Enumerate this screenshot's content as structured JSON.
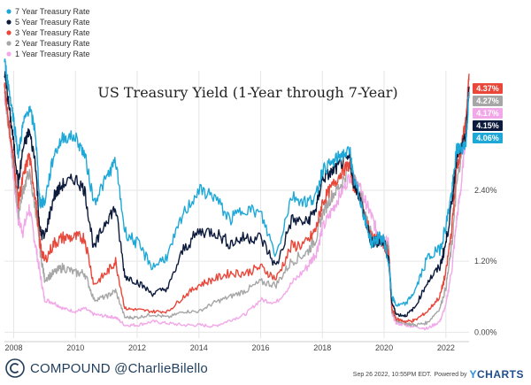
{
  "chart_data": {
    "type": "line",
    "title": "US Treasury Yield (1-Year through 7-Year)",
    "xlabel": "",
    "ylabel": "",
    "x_ticks": [
      "2008",
      "2010",
      "2012",
      "2014",
      "2016",
      "2018",
      "2020",
      "2022"
    ],
    "y_ticks": [
      "0.00%",
      "1.20%",
      "2.40%"
    ],
    "y_tick_values": [
      0.0,
      1.2,
      2.4
    ],
    "xlim": [
      2007.7,
      2022.75
    ],
    "ylim": [
      -0.1,
      4.3
    ],
    "grid": true,
    "legend_position": "top-left",
    "series": [
      {
        "name": "1 Year Treasury Rate",
        "color": "#f2a8e8",
        "end_label": "4.17%",
        "x": [
          2007.7,
          2007.85,
          2008.0,
          2008.15,
          2008.3,
          2008.5,
          2008.7,
          2008.85,
          2009.0,
          2009.3,
          2009.6,
          2010.0,
          2010.3,
          2010.6,
          2011.0,
          2011.3,
          2011.6,
          2012.0,
          2012.5,
          2013.0,
          2013.5,
          2014.0,
          2014.5,
          2015.0,
          2015.5,
          2016.0,
          2016.5,
          2017.0,
          2017.5,
          2017.8,
          2018.0,
          2018.3,
          2018.6,
          2018.9,
          2019.0,
          2019.2,
          2019.4,
          2019.6,
          2019.8,
          2020.0,
          2020.15,
          2020.25,
          2020.4,
          2020.7,
          2021.0,
          2021.4,
          2021.8,
          2022.0,
          2022.2,
          2022.35,
          2022.5,
          2022.65,
          2022.75
        ],
        "y": [
          4.0,
          3.5,
          2.6,
          1.9,
          1.7,
          2.1,
          1.5,
          1.0,
          0.55,
          0.5,
          0.4,
          0.35,
          0.4,
          0.3,
          0.27,
          0.25,
          0.12,
          0.12,
          0.18,
          0.15,
          0.12,
          0.12,
          0.1,
          0.2,
          0.3,
          0.55,
          0.5,
          0.82,
          1.1,
          1.35,
          1.75,
          2.05,
          2.35,
          2.65,
          2.6,
          2.45,
          2.2,
          1.95,
          1.65,
          1.55,
          1.5,
          0.3,
          0.15,
          0.12,
          0.1,
          0.06,
          0.18,
          0.45,
          1.1,
          1.9,
          2.5,
          3.4,
          4.17
        ]
      },
      {
        "name": "2 Year Treasury Rate",
        "color": "#a6a6a6",
        "end_label": "4.27%",
        "x": [
          2007.7,
          2007.85,
          2008.0,
          2008.15,
          2008.3,
          2008.5,
          2008.7,
          2008.85,
          2009.0,
          2009.3,
          2009.6,
          2010.0,
          2010.3,
          2010.6,
          2011.0,
          2011.3,
          2011.6,
          2012.0,
          2012.5,
          2013.0,
          2013.5,
          2014.0,
          2014.5,
          2015.0,
          2015.5,
          2016.0,
          2016.5,
          2017.0,
          2017.5,
          2017.8,
          2018.0,
          2018.3,
          2018.6,
          2018.9,
          2019.0,
          2019.2,
          2019.4,
          2019.6,
          2019.8,
          2020.0,
          2020.15,
          2020.25,
          2020.4,
          2020.7,
          2021.0,
          2021.4,
          2021.8,
          2022.0,
          2022.2,
          2022.35,
          2022.5,
          2022.65,
          2022.75
        ],
        "y": [
          4.1,
          3.4,
          2.8,
          2.0,
          2.4,
          2.7,
          2.1,
          1.4,
          0.9,
          1.0,
          1.1,
          1.0,
          1.0,
          0.55,
          0.6,
          0.7,
          0.25,
          0.25,
          0.3,
          0.25,
          0.35,
          0.35,
          0.5,
          0.6,
          0.7,
          0.85,
          0.8,
          1.2,
          1.35,
          1.6,
          2.0,
          2.3,
          2.5,
          2.8,
          2.6,
          2.4,
          2.0,
          1.6,
          1.55,
          1.5,
          1.4,
          0.35,
          0.2,
          0.15,
          0.12,
          0.16,
          0.4,
          0.75,
          1.5,
          2.5,
          3.0,
          3.5,
          4.27
        ]
      },
      {
        "name": "3 Year Treasury Rate",
        "color": "#e8473a",
        "end_label": "4.37%",
        "x": [
          2007.7,
          2007.85,
          2008.0,
          2008.15,
          2008.3,
          2008.5,
          2008.7,
          2008.85,
          2009.0,
          2009.3,
          2009.6,
          2010.0,
          2010.3,
          2010.6,
          2011.0,
          2011.3,
          2011.6,
          2012.0,
          2012.5,
          2013.0,
          2013.5,
          2014.0,
          2014.5,
          2015.0,
          2015.5,
          2016.0,
          2016.5,
          2017.0,
          2017.5,
          2017.8,
          2018.0,
          2018.3,
          2018.6,
          2018.9,
          2019.0,
          2019.2,
          2019.4,
          2019.6,
          2019.8,
          2020.0,
          2020.15,
          2020.25,
          2020.4,
          2020.7,
          2021.0,
          2021.4,
          2021.8,
          2022.0,
          2022.2,
          2022.35,
          2022.5,
          2022.65,
          2022.75
        ],
        "y": [
          4.2,
          3.5,
          2.9,
          2.2,
          2.6,
          3.0,
          2.3,
          1.5,
          1.2,
          1.5,
          1.6,
          1.6,
          1.6,
          0.8,
          1.0,
          1.2,
          0.4,
          0.38,
          0.35,
          0.35,
          0.6,
          0.8,
          0.9,
          1.0,
          1.0,
          1.1,
          0.9,
          1.45,
          1.5,
          1.75,
          2.2,
          2.45,
          2.7,
          2.85,
          2.5,
          2.3,
          1.9,
          1.6,
          1.55,
          1.5,
          1.3,
          0.4,
          0.22,
          0.18,
          0.2,
          0.35,
          0.6,
          1.0,
          1.8,
          2.8,
          3.1,
          3.6,
          4.37
        ]
      },
      {
        "name": "5 Year Treasury Rate",
        "color": "#0c1a3c",
        "end_label": "4.15%",
        "x": [
          2007.7,
          2007.85,
          2008.0,
          2008.15,
          2008.3,
          2008.5,
          2008.7,
          2008.85,
          2009.0,
          2009.3,
          2009.6,
          2010.0,
          2010.3,
          2010.6,
          2011.0,
          2011.3,
          2011.6,
          2012.0,
          2012.5,
          2013.0,
          2013.5,
          2014.0,
          2014.5,
          2015.0,
          2015.5,
          2016.0,
          2016.5,
          2017.0,
          2017.5,
          2017.8,
          2018.0,
          2018.3,
          2018.6,
          2018.9,
          2019.0,
          2019.2,
          2019.4,
          2019.6,
          2019.8,
          2020.0,
          2020.15,
          2020.25,
          2020.4,
          2020.7,
          2021.0,
          2021.4,
          2021.8,
          2022.0,
          2022.2,
          2022.35,
          2022.5,
          2022.65,
          2022.75
        ],
        "y": [
          4.4,
          3.8,
          3.2,
          2.5,
          3.1,
          3.4,
          2.9,
          1.7,
          1.6,
          2.3,
          2.5,
          2.6,
          2.4,
          1.4,
          1.9,
          2.1,
          0.95,
          0.85,
          0.65,
          0.75,
          1.4,
          1.7,
          1.7,
          1.5,
          1.6,
          1.6,
          1.1,
          1.9,
          1.85,
          2.1,
          2.6,
          2.7,
          2.85,
          2.95,
          2.55,
          2.3,
          1.85,
          1.5,
          1.55,
          1.55,
          1.2,
          0.5,
          0.3,
          0.28,
          0.42,
          0.85,
          1.1,
          1.5,
          2.2,
          3.0,
          3.1,
          3.3,
          4.15
        ]
      },
      {
        "name": "7 Year Treasury Rate",
        "color": "#1ea8d8",
        "end_label": "4.06%",
        "x": [
          2007.7,
          2007.85,
          2008.0,
          2008.15,
          2008.3,
          2008.5,
          2008.7,
          2008.85,
          2009.0,
          2009.3,
          2009.6,
          2010.0,
          2010.3,
          2010.6,
          2011.0,
          2011.3,
          2011.6,
          2012.0,
          2012.5,
          2013.0,
          2013.5,
          2014.0,
          2014.5,
          2015.0,
          2015.5,
          2016.0,
          2016.5,
          2017.0,
          2017.5,
          2017.8,
          2018.0,
          2018.3,
          2018.6,
          2018.9,
          2019.0,
          2019.2,
          2019.4,
          2019.6,
          2019.8,
          2020.0,
          2020.15,
          2020.25,
          2020.4,
          2020.7,
          2021.0,
          2021.4,
          2021.8,
          2022.0,
          2022.2,
          2022.35,
          2022.5,
          2022.65,
          2022.75
        ],
        "y": [
          4.6,
          4.1,
          3.6,
          3.0,
          3.5,
          3.8,
          3.4,
          2.2,
          2.2,
          3.0,
          3.3,
          3.3,
          3.0,
          2.2,
          2.6,
          2.9,
          1.7,
          1.5,
          1.1,
          1.3,
          2.0,
          2.4,
          2.3,
          1.9,
          2.1,
          2.0,
          1.3,
          2.3,
          2.2,
          2.3,
          2.75,
          2.85,
          3.0,
          3.05,
          2.6,
          2.3,
          1.85,
          1.5,
          1.6,
          1.55,
          1.15,
          0.6,
          0.45,
          0.48,
          0.7,
          1.25,
          1.4,
          1.8,
          2.4,
          3.1,
          3.1,
          3.2,
          4.06
        ]
      }
    ],
    "legend_order": [
      4,
      3,
      2,
      1,
      0
    ],
    "badge_order": [
      2,
      1,
      0,
      3,
      4
    ]
  },
  "footer": {
    "brand_company": "COMPOUND",
    "brand_handle": "@CharlieBilello",
    "timestamp": "Sep 26 2022, 10:55PM EDT.",
    "powered_by": "Powered by",
    "ycharts_y": "Y",
    "ycharts_rest": "CHARTS"
  },
  "colors": {
    "grid": "#e6e6e6",
    "axis": "#cccccc",
    "brand": "#1f3d5c"
  }
}
